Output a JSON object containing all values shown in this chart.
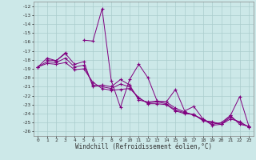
{
  "xlabel": "Windchill (Refroidissement éolien,°C)",
  "background_color": "#cce8e8",
  "grid_color": "#aacccc",
  "line_color": "#800080",
  "xlim": [
    -0.5,
    23.5
  ],
  "ylim": [
    -26.5,
    -11.5
  ],
  "yticks": [
    -26,
    -25,
    -24,
    -23,
    -22,
    -21,
    -20,
    -19,
    -18,
    -17,
    -16,
    -15,
    -14,
    -13,
    -12
  ],
  "xticks": [
    0,
    1,
    2,
    3,
    4,
    5,
    6,
    7,
    8,
    9,
    10,
    11,
    12,
    13,
    14,
    15,
    16,
    17,
    18,
    19,
    20,
    21,
    22,
    23
  ],
  "series": [
    [
      null,
      -18.0,
      -18.1,
      -17.2,
      null,
      -15.8,
      -15.9,
      -12.3,
      -20.3,
      -23.3,
      -20.2,
      -18.5,
      -20.0,
      -22.6,
      -22.7,
      -21.3,
      -23.7,
      -23.2,
      -24.6,
      -25.2,
      -25.0,
      -24.2,
      -22.1,
      -25.4
    ],
    [
      -18.8,
      -17.8,
      -18.1,
      -17.3,
      -18.5,
      -18.2,
      -21.0,
      -20.8,
      -21.0,
      -20.2,
      -20.8,
      -22.5,
      -22.7,
      -22.6,
      -22.7,
      -23.4,
      -23.8,
      -24.2,
      -24.6,
      -25.3,
      -25.2,
      -24.2,
      -25.2,
      -25.4
    ],
    [
      -18.8,
      -18.2,
      -18.3,
      -17.8,
      -18.8,
      -18.6,
      -20.8,
      -21.0,
      -21.2,
      -20.7,
      -21.0,
      -22.3,
      -22.8,
      -22.7,
      -22.9,
      -23.6,
      -23.9,
      -24.1,
      -24.7,
      -25.0,
      -25.2,
      -24.4,
      -25.0,
      -25.5
    ],
    [
      -18.8,
      -18.4,
      -18.5,
      -18.3,
      -19.1,
      -19.0,
      -20.5,
      -21.2,
      -21.4,
      -21.3,
      -21.2,
      -22.2,
      -22.9,
      -22.9,
      -23.0,
      -23.7,
      -24.0,
      -24.1,
      -24.8,
      -24.9,
      -25.2,
      -24.6,
      -24.9,
      -25.5
    ]
  ]
}
